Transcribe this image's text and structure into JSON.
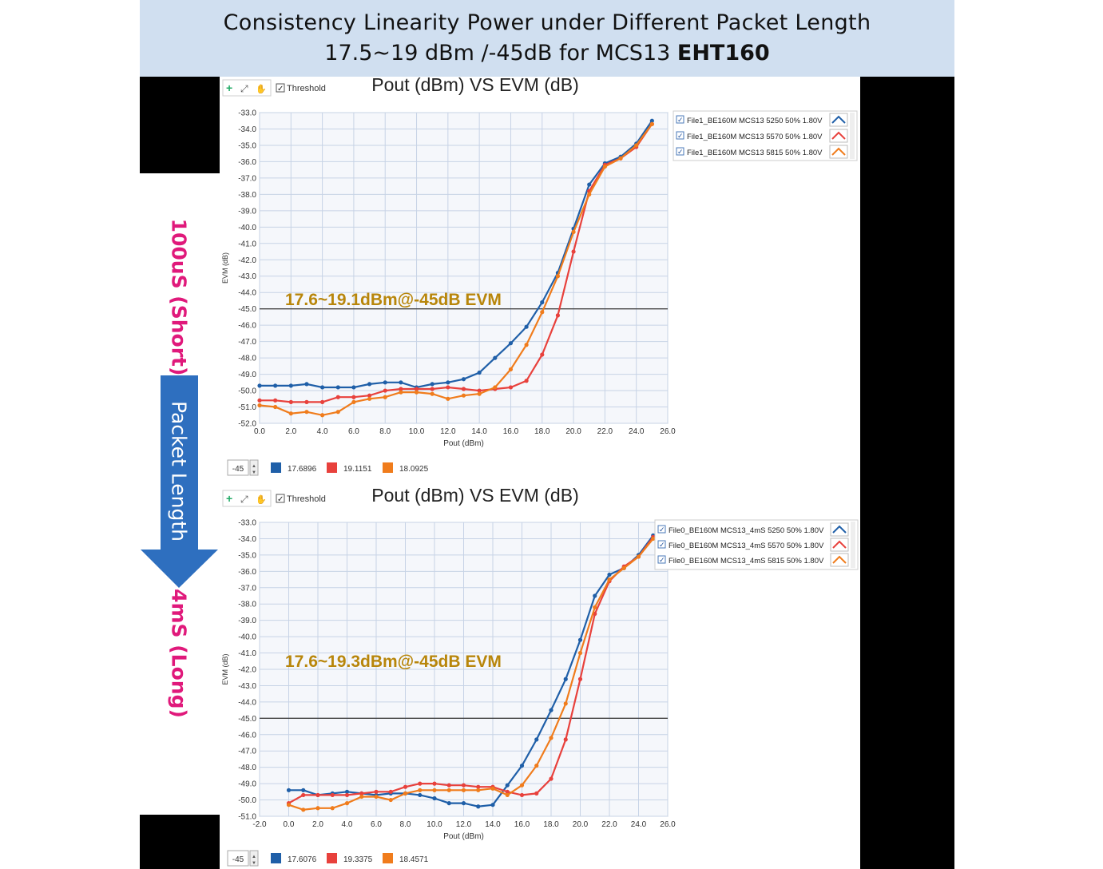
{
  "header": {
    "line1": "Consistency Linearity Power under Different Packet Length",
    "line2_prefix": "17.5~19 dBm /-45dB for MCS13 ",
    "line2_bold": "EHT160"
  },
  "side": {
    "short_label": "100uS (Short)",
    "arrow_label": "Packet Length",
    "long_label": "4mS (Long)"
  },
  "colors": {
    "blue": "#1f5fa8",
    "red": "#e8413c",
    "orange": "#f07c1c",
    "annotation": "#b8860b",
    "magenta": "#e0197b",
    "arrow": "#2e6fbf"
  },
  "chart_data": [
    {
      "type": "line",
      "title": "Pout (dBm) VS EVM (dB)",
      "toolbar_threshold": "Threshold",
      "xlabel": "Pout (dBm)",
      "ylabel": "EVM (dB)",
      "xlim": [
        0,
        26
      ],
      "ylim": [
        -52,
        -33
      ],
      "xticks": [
        "0.0",
        "2.0",
        "4.0",
        "6.0",
        "8.0",
        "10.0",
        "12.0",
        "14.0",
        "16.0",
        "18.0",
        "20.0",
        "22.0",
        "24.0",
        "26.0"
      ],
      "yticks": [
        "-33.0",
        "-34.0",
        "-35.0",
        "-36.0",
        "-37.0",
        "-38.0",
        "-39.0",
        "-40.0",
        "-41.0",
        "-42.0",
        "-43.0",
        "-44.0",
        "-45.0",
        "-46.0",
        "-47.0",
        "-48.0",
        "-49.0",
        "-50.0",
        "-51.0",
        "-52.0"
      ],
      "threshold": -45,
      "threshold_input": "-45",
      "annotation": "17.6~19.1dBm@-45dB EVM",
      "grid": true,
      "legend_position": "top-right",
      "series": [
        {
          "name": "File1_BE160M MCS13 5250 50% 1.80V",
          "color": "#1f5fa8",
          "threshold_value": "17.6896",
          "x": [
            0,
            1,
            2,
            3,
            4,
            5,
            6,
            7,
            8,
            9,
            10,
            11,
            12,
            13,
            14,
            15,
            16,
            17,
            18,
            19,
            20,
            21,
            22,
            23,
            24,
            25
          ],
          "y": [
            -49.7,
            -49.7,
            -49.7,
            -49.6,
            -49.8,
            -49.8,
            -49.8,
            -49.6,
            -49.5,
            -49.5,
            -49.8,
            -49.6,
            -49.5,
            -49.3,
            -48.9,
            -48.0,
            -47.1,
            -46.1,
            -44.6,
            -42.8,
            -40.1,
            -37.4,
            -36.1,
            -35.7,
            -34.9,
            -33.5
          ]
        },
        {
          "name": "File1_BE160M MCS13 5570 50% 1.80V",
          "color": "#e8413c",
          "threshold_value": "19.1151",
          "x": [
            0,
            1,
            2,
            3,
            4,
            5,
            6,
            7,
            8,
            9,
            10,
            11,
            12,
            13,
            14,
            15,
            16,
            17,
            18,
            19,
            20,
            21,
            22,
            23,
            24,
            25
          ],
          "y": [
            -50.6,
            -50.6,
            -50.7,
            -50.7,
            -50.7,
            -50.4,
            -50.4,
            -50.3,
            -50.0,
            -49.9,
            -49.9,
            -49.9,
            -49.8,
            -49.9,
            -50.0,
            -49.9,
            -49.8,
            -49.4,
            -47.8,
            -45.4,
            -41.5,
            -37.8,
            -36.2,
            -35.8,
            -35.1,
            -33.7
          ]
        },
        {
          "name": "File1_BE160M MCS13 5815 50% 1.80V",
          "color": "#f07c1c",
          "threshold_value": "18.0925",
          "x": [
            0,
            1,
            2,
            3,
            4,
            5,
            6,
            7,
            8,
            9,
            10,
            11,
            12,
            13,
            14,
            15,
            16,
            17,
            18,
            19,
            20,
            21,
            22,
            23,
            24,
            25
          ],
          "y": [
            -50.9,
            -51.0,
            -51.4,
            -51.3,
            -51.5,
            -51.3,
            -50.7,
            -50.5,
            -50.4,
            -50.1,
            -50.1,
            -50.2,
            -50.5,
            -50.3,
            -50.2,
            -49.8,
            -48.7,
            -47.2,
            -45.2,
            -43.0,
            -40.3,
            -38.0,
            -36.3,
            -35.8,
            -35.0,
            -33.7
          ]
        }
      ]
    },
    {
      "type": "line",
      "title": "Pout (dBm) VS EVM (dB)",
      "toolbar_threshold": "Threshold",
      "xlabel": "Pout (dBm)",
      "ylabel": "EVM (dB)",
      "xlim": [
        -2,
        26
      ],
      "ylim": [
        -51,
        -33
      ],
      "xticks": [
        "-2.0",
        "0.0",
        "2.0",
        "4.0",
        "6.0",
        "8.0",
        "10.0",
        "12.0",
        "14.0",
        "16.0",
        "18.0",
        "20.0",
        "22.0",
        "24.0",
        "26.0"
      ],
      "yticks": [
        "-33.0",
        "-34.0",
        "-35.0",
        "-36.0",
        "-37.0",
        "-38.0",
        "-39.0",
        "-40.0",
        "-41.0",
        "-42.0",
        "-43.0",
        "-44.0",
        "-45.0",
        "-46.0",
        "-47.0",
        "-48.0",
        "-49.0",
        "-50.0",
        "-51.0"
      ],
      "threshold": -45,
      "threshold_input": "-45",
      "annotation": "17.6~19.3dBm@-45dB EVM",
      "grid": true,
      "legend_position": "top-right",
      "series": [
        {
          "name": "File0_BE160M MCS13_4mS 5250 50% 1.80V",
          "color": "#1f5fa8",
          "threshold_value": "17.6076",
          "x": [
            0,
            1,
            2,
            3,
            4,
            5,
            6,
            7,
            8,
            9,
            10,
            11,
            12,
            13,
            14,
            15,
            16,
            17,
            18,
            19,
            20,
            21,
            22,
            23,
            24,
            25
          ],
          "y": [
            -49.4,
            -49.4,
            -49.7,
            -49.6,
            -49.5,
            -49.6,
            -49.7,
            -49.6,
            -49.6,
            -49.7,
            -49.9,
            -50.2,
            -50.2,
            -50.4,
            -50.3,
            -49.1,
            -47.9,
            -46.3,
            -44.5,
            -42.6,
            -40.2,
            -37.5,
            -36.2,
            -35.8,
            -35.0,
            -33.8
          ]
        },
        {
          "name": "File0_BE160M MCS13_4mS 5570 50% 1.80V",
          "color": "#e8413c",
          "threshold_value": "19.3375",
          "x": [
            0,
            1,
            2,
            3,
            4,
            5,
            6,
            7,
            8,
            9,
            10,
            11,
            12,
            13,
            14,
            15,
            16,
            17,
            18,
            19,
            20,
            21,
            22,
            23,
            24,
            25
          ],
          "y": [
            -50.2,
            -49.7,
            -49.7,
            -49.7,
            -49.7,
            -49.6,
            -49.5,
            -49.5,
            -49.2,
            -49.0,
            -49.0,
            -49.1,
            -49.1,
            -49.2,
            -49.2,
            -49.5,
            -49.7,
            -49.6,
            -48.7,
            -46.3,
            -42.6,
            -38.6,
            -36.6,
            -35.7,
            -35.1,
            -33.9
          ]
        },
        {
          "name": "File0_BE160M MCS13_4mS 5815 50% 1.80V",
          "color": "#f07c1c",
          "threshold_value": "18.4571",
          "x": [
            0,
            1,
            2,
            3,
            4,
            5,
            6,
            7,
            8,
            9,
            10,
            11,
            12,
            13,
            14,
            15,
            16,
            17,
            18,
            19,
            20,
            21,
            22,
            23,
            24,
            25
          ],
          "y": [
            -50.3,
            -50.6,
            -50.5,
            -50.5,
            -50.2,
            -49.8,
            -49.8,
            -50.0,
            -49.6,
            -49.4,
            -49.4,
            -49.4,
            -49.4,
            -49.4,
            -49.3,
            -49.7,
            -49.1,
            -47.9,
            -46.2,
            -44.1,
            -41.0,
            -38.2,
            -36.5,
            -35.8,
            -35.1,
            -34.0
          ]
        }
      ]
    }
  ]
}
